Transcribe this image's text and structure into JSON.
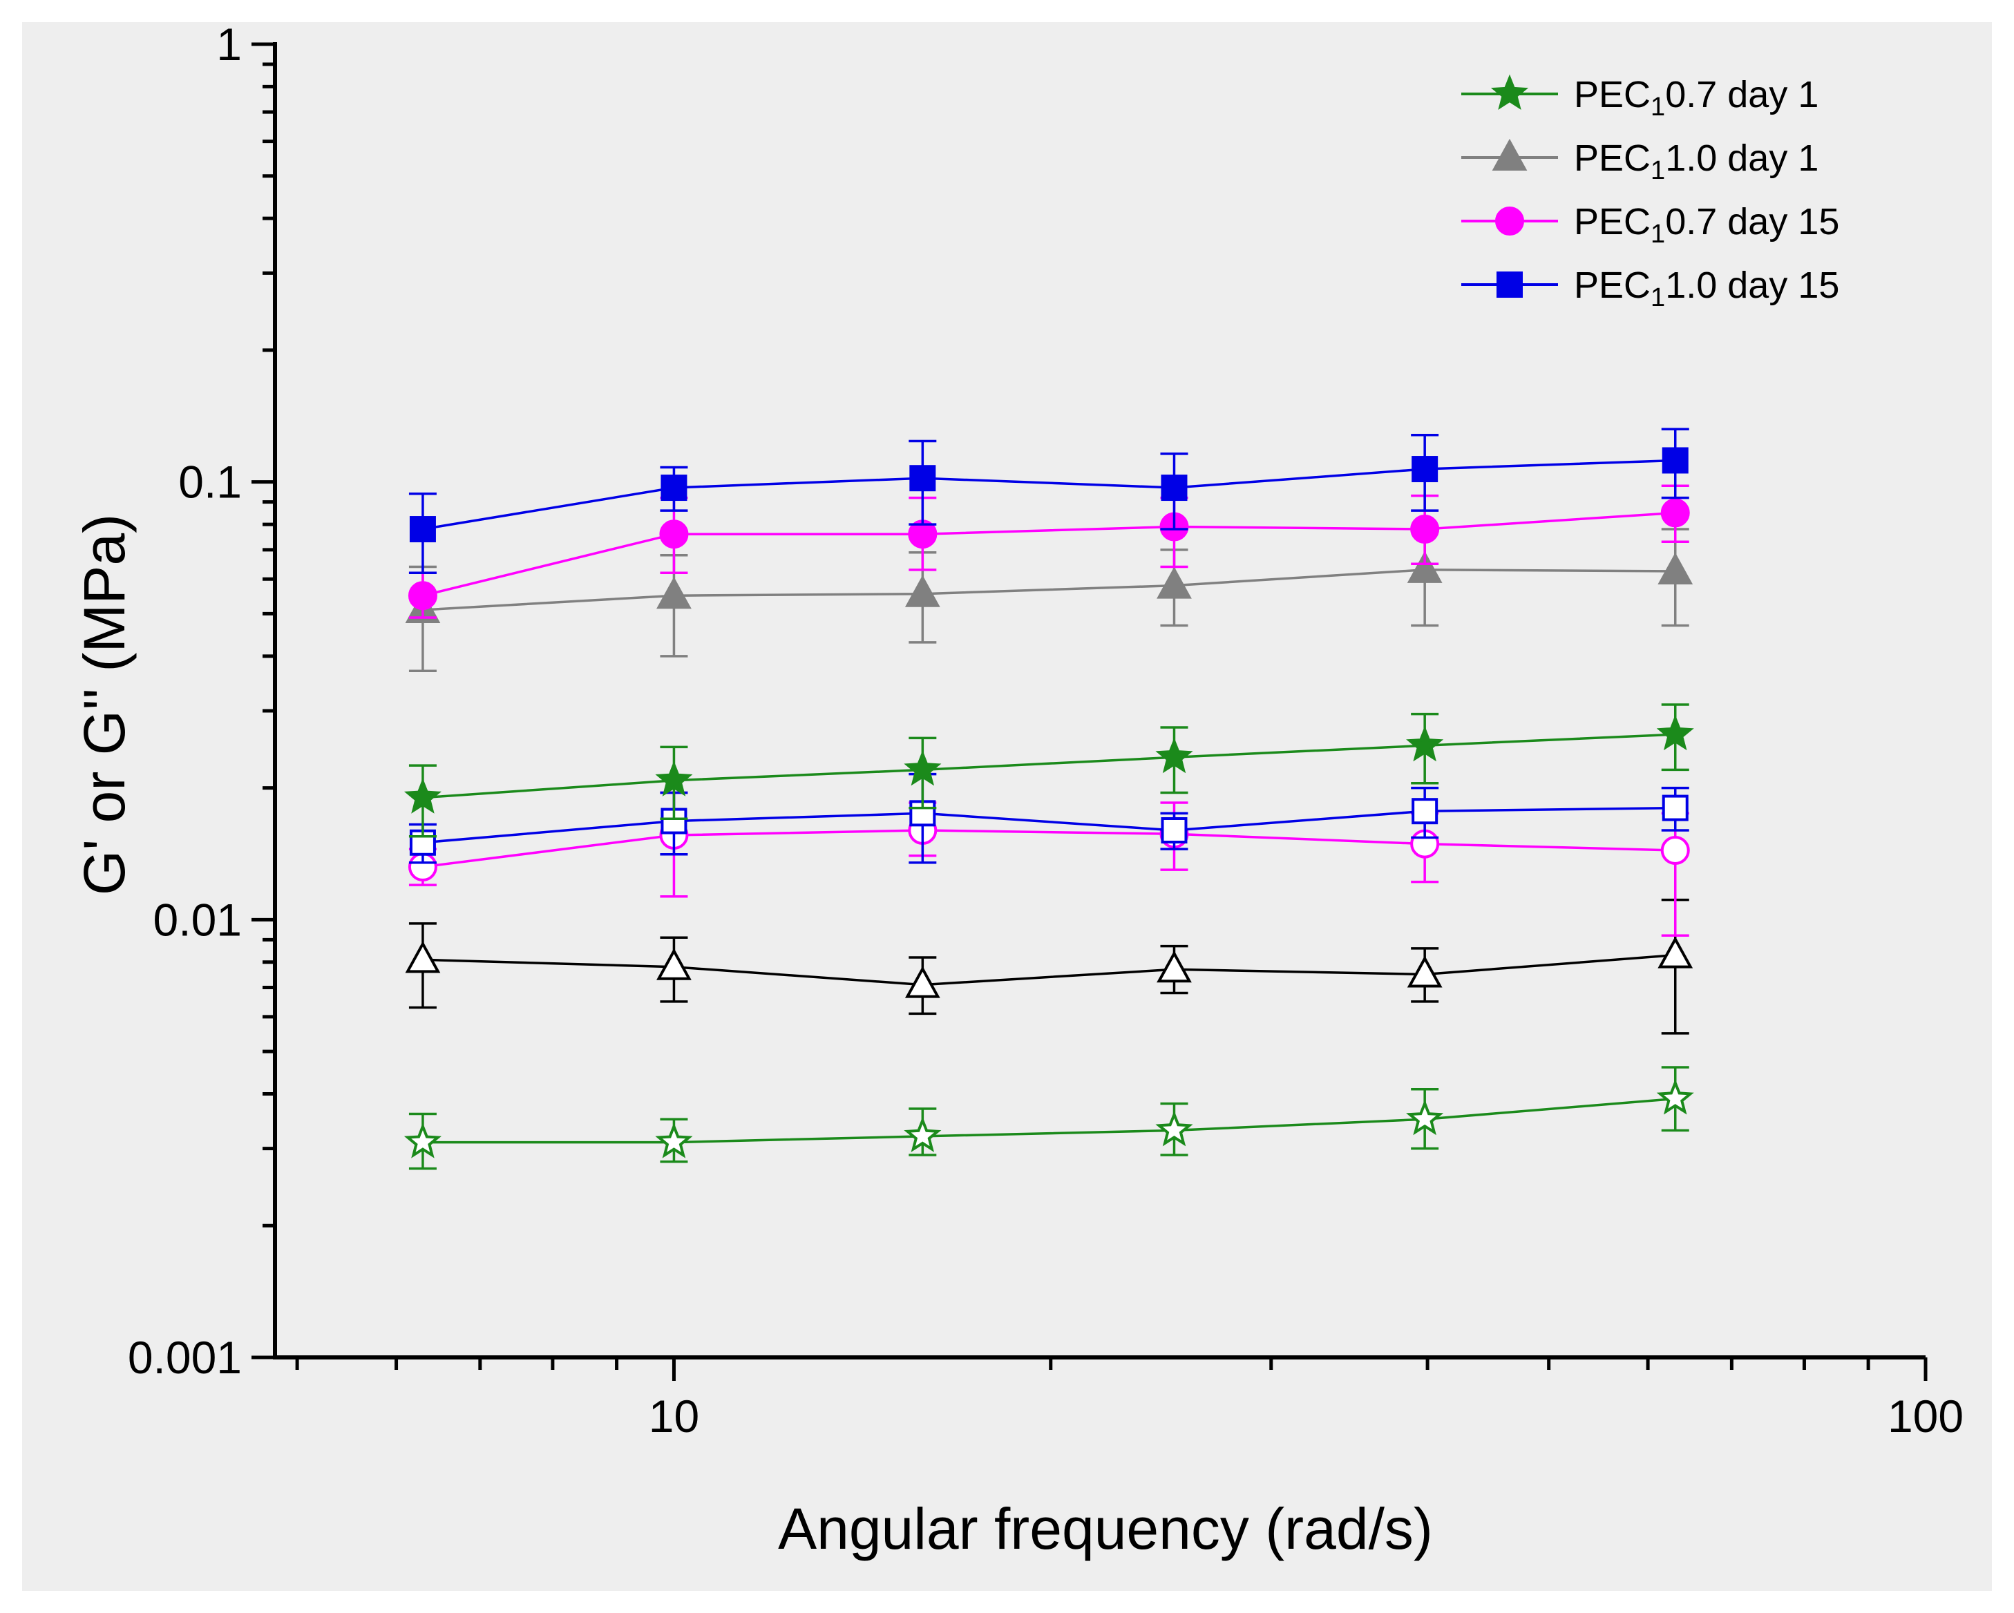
{
  "colors": {
    "background": "#eeeeee",
    "green": "#1b8a1b",
    "gray": "#808080",
    "black": "#000000",
    "magenta": "#ff00ff",
    "blue": "#0000e6"
  },
  "chart_data": {
    "type": "line",
    "title": "",
    "xlabel": "Angular frequency (rad/s)",
    "ylabel": "G' or G'' (MPa)",
    "xscale": "log",
    "yscale": "log",
    "xlim": [
      4.8,
      100
    ],
    "ylim": [
      0.001,
      1
    ],
    "x_ticks": [
      {
        "value": 10,
        "label": "10"
      },
      {
        "value": 100,
        "label": "100"
      }
    ],
    "y_ticks": [
      {
        "value": 0.001,
        "label": "0.001"
      },
      {
        "value": 0.01,
        "label": "0.01"
      },
      {
        "value": 0.1,
        "label": "0.1"
      },
      {
        "value": 1,
        "label": "1"
      }
    ],
    "grid": false,
    "legend_position": "top-right",
    "x": [
      6.3,
      10,
      15.8,
      25.1,
      39.8,
      63.1
    ],
    "legend": [
      {
        "label_pre": "PEC",
        "label_sub": "1",
        "label_post": "0.7 day 1",
        "color": "#1b8a1b",
        "marker": "star"
      },
      {
        "label_pre": "PEC",
        "label_sub": "1",
        "label_post": "1.0 day 1",
        "color": "#808080",
        "marker": "triangle"
      },
      {
        "label_pre": "PEC",
        "label_sub": "1",
        "label_post": "0.7 day 15",
        "color": "#ff00ff",
        "marker": "circle"
      },
      {
        "label_pre": "PEC",
        "label_sub": "1",
        "label_post": "1.0 day 15",
        "color": "#0000e6",
        "marker": "square"
      }
    ],
    "series": [
      {
        "name": "PEC1.0 day 1 G'",
        "color": "#808080",
        "marker": "triangle",
        "filled": true,
        "values": [
          0.051,
          0.055,
          0.0555,
          0.058,
          0.063,
          0.0625
        ],
        "err_upper": [
          0.064,
          0.068,
          0.069,
          0.07,
          0.079,
          0.078
        ],
        "err_lower": [
          0.037,
          0.04,
          0.043,
          0.047,
          0.047,
          0.047
        ]
      },
      {
        "name": "PEC1.0 day 1 G''",
        "color": "#000000",
        "marker": "triangle",
        "filled": false,
        "values": [
          0.0081,
          0.0078,
          0.0071,
          0.0077,
          0.0075,
          0.0083
        ],
        "err_upper": [
          0.0098,
          0.0091,
          0.0082,
          0.0087,
          0.0086,
          0.0111
        ],
        "err_lower": [
          0.0063,
          0.0065,
          0.0061,
          0.0068,
          0.0065,
          0.0055
        ]
      },
      {
        "name": "PEC0.7 day 15 G'",
        "color": "#ff00ff",
        "marker": "circle",
        "filled": true,
        "values": [
          0.055,
          0.076,
          0.076,
          0.079,
          0.078,
          0.085
        ],
        "err_upper": [
          0.062,
          0.092,
          0.092,
          0.092,
          0.093,
          0.098
        ],
        "err_lower": [
          0.049,
          0.062,
          0.063,
          0.064,
          0.065,
          0.073
        ]
      },
      {
        "name": "PEC0.7 day 15 G''",
        "color": "#ff00ff",
        "marker": "circle",
        "filled": false,
        "values": [
          0.0132,
          0.0156,
          0.016,
          0.0157,
          0.0149,
          0.0144
        ],
        "err_upper": [
          0.0145,
          0.0195,
          0.0185,
          0.0185,
          0.0175,
          0.0175
        ],
        "err_lower": [
          0.012,
          0.0113,
          0.014,
          0.013,
          0.0122,
          0.0092
        ]
      },
      {
        "name": "PEC1.0 day 15 G'",
        "color": "#0000e6",
        "marker": "square",
        "filled": true,
        "values": [
          0.078,
          0.097,
          0.102,
          0.097,
          0.107,
          0.112
        ],
        "err_upper": [
          0.094,
          0.108,
          0.124,
          0.116,
          0.128,
          0.132
        ],
        "err_lower": [
          0.062,
          0.086,
          0.08,
          0.078,
          0.086,
          0.092
        ]
      },
      {
        "name": "PEC1.0 day 15 G''",
        "color": "#0000e6",
        "marker": "square",
        "filled": false,
        "values": [
          0.015,
          0.0168,
          0.0175,
          0.016,
          0.0177,
          0.018
        ],
        "err_upper": [
          0.0165,
          0.0195,
          0.0215,
          0.0175,
          0.02,
          0.02
        ],
        "err_lower": [
          0.0135,
          0.0141,
          0.0135,
          0.0145,
          0.0154,
          0.016
        ]
      },
      {
        "name": "PEC0.7 day 1 G'",
        "color": "#1b8a1b",
        "marker": "star",
        "filled": true,
        "values": [
          0.019,
          0.0208,
          0.022,
          0.0235,
          0.025,
          0.0265
        ],
        "err_upper": [
          0.0225,
          0.0248,
          0.026,
          0.0275,
          0.0295,
          0.031
        ],
        "err_lower": [
          0.0155,
          0.017,
          0.018,
          0.0195,
          0.0205,
          0.022
        ]
      },
      {
        "name": "PEC0.7 day 1 G''",
        "color": "#1b8a1b",
        "marker": "star",
        "filled": false,
        "values": [
          0.0031,
          0.0031,
          0.0032,
          0.0033,
          0.0035,
          0.0039
        ],
        "err_upper": [
          0.0036,
          0.0035,
          0.0037,
          0.0038,
          0.0041,
          0.0046
        ],
        "err_lower": [
          0.0027,
          0.0028,
          0.0029,
          0.0029,
          0.003,
          0.0033
        ]
      }
    ]
  }
}
